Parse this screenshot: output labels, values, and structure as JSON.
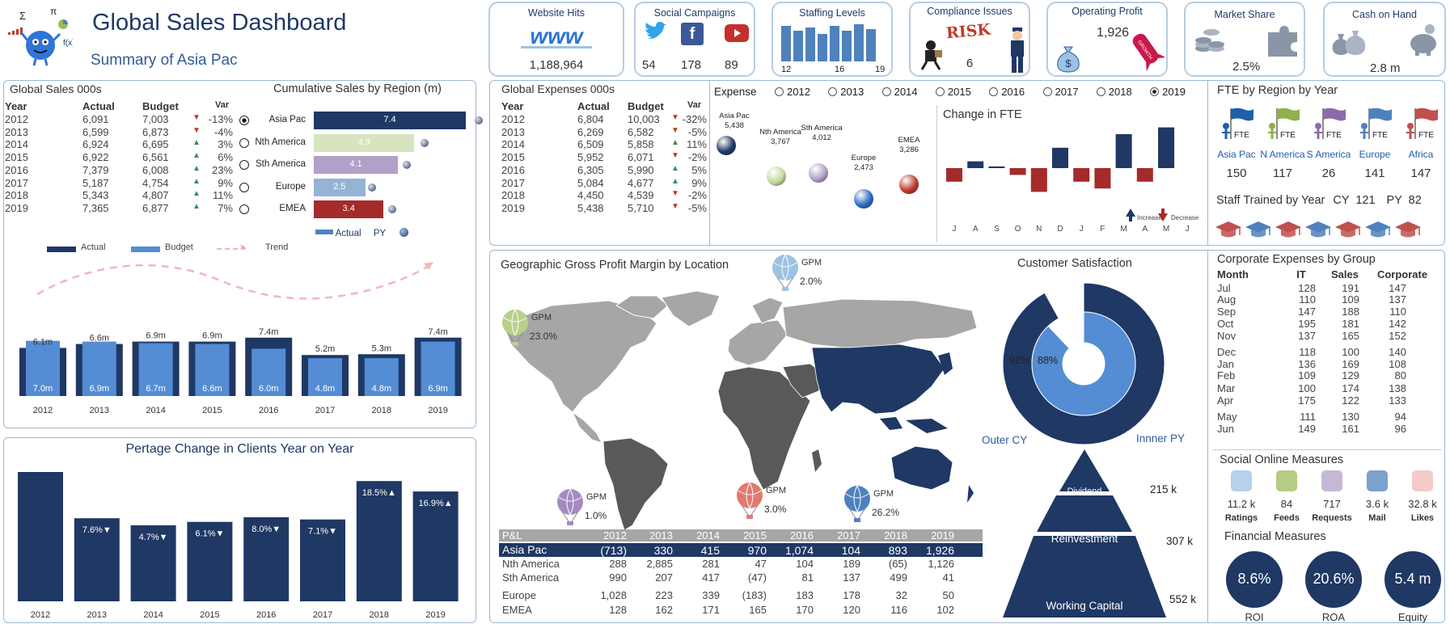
{
  "header": {
    "title": "Global Sales Dashboard",
    "subtitle": "Summary of Asia Pac"
  },
  "kpis": {
    "website": {
      "title": "Website Hits",
      "value": "1,188,964"
    },
    "social": {
      "title": "Social Campaigns",
      "twitter": "54",
      "facebook": "178",
      "youtube": "89"
    },
    "staffing": {
      "title": "Staffing Levels",
      "ticks": [
        "12",
        "16",
        "19"
      ]
    },
    "compliance": {
      "title": "Compliance Issues",
      "risk_word": "RISK",
      "value": "6"
    },
    "profit": {
      "title": "Operating Profit",
      "value": "1,926",
      "badge": "GROWTH"
    },
    "market": {
      "title": "Market Share",
      "value": "2.5%"
    },
    "cash": {
      "title": "Cash on Hand",
      "value": "2.8 m"
    }
  },
  "global_sales": {
    "title": "Global Sales 000s",
    "headers": [
      "Year",
      "Actual",
      "Budget",
      "Var"
    ],
    "rows": [
      {
        "year": "2012",
        "actual": "6,091",
        "budget": "7,003",
        "dir": "down",
        "var": "-13%"
      },
      {
        "year": "2013",
        "actual": "6,599",
        "budget": "6,873",
        "dir": "down",
        "var": "-4%"
      },
      {
        "year": "2014",
        "actual": "6,924",
        "budget": "6,695",
        "dir": "up",
        "var": "3%"
      },
      {
        "year": "2015",
        "actual": "6,922",
        "budget": "6,561",
        "dir": "up",
        "var": "6%"
      },
      {
        "year": "2016",
        "actual": "7,379",
        "budget": "6,008",
        "dir": "up",
        "var": "23%"
      },
      {
        "year": "2017",
        "actual": "5,187",
        "budget": "4,754",
        "dir": "up",
        "var": "9%"
      },
      {
        "year": "2018",
        "actual": "5,343",
        "budget": "4,807",
        "dir": "up",
        "var": "11%"
      },
      {
        "year": "2019",
        "actual": "7,365",
        "budget": "6,877",
        "dir": "up",
        "var": "7%"
      }
    ]
  },
  "cumulative": {
    "title": "Cumulative Sales by Region (m)",
    "regions": [
      {
        "name": "Asia Pac",
        "value": 7.4,
        "label": "7.4",
        "color": "#1f3864",
        "selected": true
      },
      {
        "name": "Nth America",
        "value": 4.9,
        "label": "4.9",
        "color": "#d6e4bf",
        "selected": false
      },
      {
        "name": "Sth America",
        "value": 4.1,
        "label": "4.1",
        "color": "#b1a0c7",
        "selected": false
      },
      {
        "name": "Europe",
        "value": 2.5,
        "label": "2.5",
        "color": "#95b3d7",
        "selected": false
      },
      {
        "name": "EMEA",
        "value": 3.4,
        "label": "3.4",
        "color": "#a52a2a",
        "selected": false
      }
    ],
    "legend_actual": "Actual",
    "legend_py": "PY"
  },
  "sales_chart": {
    "legend": {
      "actual": "Actual",
      "budget": "Budget",
      "trend": "Trend"
    },
    "years": [
      "2012",
      "2013",
      "2014",
      "2015",
      "2016",
      "2017",
      "2018",
      "2019"
    ],
    "actual": [
      6.1,
      6.6,
      6.9,
      6.9,
      7.4,
      5.2,
      5.3,
      7.4
    ],
    "actual_labels": [
      "6.1m",
      "6.6m",
      "6.9m",
      "6.9m",
      "7.4m",
      "5.2m",
      "5.3m",
      "7.4m"
    ],
    "budget": [
      7.0,
      6.9,
      6.7,
      6.6,
      6.0,
      4.8,
      4.8,
      6.9
    ],
    "budget_labels": [
      "7.0m",
      "6.9m",
      "6.7m",
      "6.6m",
      "6.0m",
      "4.8m",
      "4.8m",
      "6.9m"
    ]
  },
  "clients": {
    "title": "Pertage Change in Clients Year on Year",
    "years": [
      "2012",
      "2013",
      "2014",
      "2015",
      "2016",
      "2017",
      "2018",
      "2019"
    ],
    "values": [
      null,
      7.6,
      4.7,
      6.1,
      8.0,
      7.1,
      18.5,
      16.9
    ],
    "labels": [
      "",
      "7.6%▼",
      "4.7%▼",
      "6.1%▼",
      "8.0%▼",
      "7.1%▼",
      "18.5%▲",
      "16.9%▲"
    ]
  },
  "global_expenses": {
    "title": "Global Expenses 000s",
    "headers": [
      "Year",
      "Actual",
      "Budget",
      "Var"
    ],
    "rows": [
      {
        "year": "2012",
        "actual": "6,804",
        "budget": "10,003",
        "dir": "down",
        "var": "-32%"
      },
      {
        "year": "2013",
        "actual": "6,269",
        "budget": "6,582",
        "dir": "down",
        "var": "-5%"
      },
      {
        "year": "2014",
        "actual": "6,509",
        "budget": "5,858",
        "dir": "up",
        "var": "11%"
      },
      {
        "year": "2015",
        "actual": "5,952",
        "budget": "6,071",
        "dir": "down",
        "var": "-2%"
      },
      {
        "year": "2016",
        "actual": "6,305",
        "budget": "5,990",
        "dir": "up",
        "var": "5%"
      },
      {
        "year": "2017",
        "actual": "5,084",
        "budget": "4,677",
        "dir": "up",
        "var": "9%"
      },
      {
        "year": "2018",
        "actual": "4,450",
        "budget": "4,539",
        "dir": "down",
        "var": "-2%"
      },
      {
        "year": "2019",
        "actual": "5,438",
        "budget": "5,710",
        "dir": "down",
        "var": "-5%"
      }
    ]
  },
  "expense_selector": {
    "label": "Expense",
    "years": [
      "2012",
      "2013",
      "2014",
      "2015",
      "2016",
      "2017",
      "2018",
      "2019"
    ],
    "selected": "2019"
  },
  "expense_regions": [
    {
      "name": "Asia Pac",
      "value": "5,438",
      "color": "#1f3864"
    },
    {
      "name": "Nth America",
      "value": "3,767",
      "color": "#c4d79b"
    },
    {
      "name": "Sth America",
      "value": "4,012",
      "color": "#b1a0c7"
    },
    {
      "name": "Europe",
      "value": "2,473",
      "color": "#2e6bc4"
    },
    {
      "name": "EMEA",
      "value": "3,286",
      "color": "#c0392b"
    }
  ],
  "fte_change": {
    "title": "Change in FTE",
    "months": [
      "J",
      "A",
      "S",
      "O",
      "N",
      "D",
      "J",
      "F",
      "M",
      "A",
      "M",
      "J"
    ],
    "values": [
      -4,
      2,
      0.5,
      -2,
      -7,
      6,
      -4,
      -6,
      10,
      -4,
      12,
      0
    ],
    "increase": "Increase",
    "decrease": "Decrease"
  },
  "fte_region": {
    "title": "FTE by Region by Year",
    "flag_text": "FTE",
    "regions": [
      {
        "name": "Asia Pac",
        "value": "150",
        "color": "#1f5fa8"
      },
      {
        "name": "N America",
        "value": "117",
        "color": "#8fb04a"
      },
      {
        "name": "S America",
        "value": "26",
        "color": "#8e6aa8"
      },
      {
        "name": "Europe",
        "value": "141",
        "color": "#4f81bd"
      },
      {
        "name": "Africa",
        "value": "147",
        "color": "#c0504d"
      }
    ],
    "trained_label": "Staff Trained by Year",
    "cy_label": "CY",
    "cy_value": "121",
    "py_label": "PY",
    "py_value": "82"
  },
  "map": {
    "title": "Geographic Gross Profit Margin by Location",
    "balloons": [
      {
        "label": "GPM",
        "value": "23.0%",
        "color": "#b9cf8c"
      },
      {
        "label": "GPM",
        "value": "2.0%",
        "color": "#9cc2e5"
      },
      {
        "label": "GPM",
        "value": "1.0%",
        "color": "#a58ac4"
      },
      {
        "label": "GPM",
        "value": "3.0%",
        "color": "#e07a70"
      },
      {
        "label": "GPM",
        "value": "26.2%",
        "color": "#4f81bd"
      }
    ]
  },
  "pl": {
    "headers": [
      "P&L",
      "2012",
      "2013",
      "2014",
      "2015",
      "2016",
      "2017",
      "2018",
      "2019"
    ],
    "rows": [
      {
        "name": "Asia Pac",
        "values": [
          "(713)",
          "330",
          "415",
          "970",
          "1,074",
          "104",
          "893",
          "1,926"
        ]
      },
      {
        "name": "Nth America",
        "values": [
          "288",
          "2,885",
          "281",
          "47",
          "104",
          "189",
          "(65)",
          "1,126"
        ]
      },
      {
        "name": "Sth America",
        "values": [
          "990",
          "207",
          "417",
          "(47)",
          "81",
          "137",
          "499",
          "41"
        ]
      },
      {
        "name": "Europe",
        "values": [
          "1,028",
          "223",
          "339",
          "(183)",
          "183",
          "178",
          "32",
          "50"
        ]
      },
      {
        "name": "EMEA",
        "values": [
          "128",
          "162",
          "171",
          "165",
          "170",
          "120",
          "116",
          "102"
        ]
      }
    ]
  },
  "satisfaction": {
    "title": "Customer Satisfaction",
    "outer_pct": 92,
    "outer_label": "92%",
    "inner_pct": 88,
    "inner_label": "88%",
    "outer_caption": "Outer CY",
    "inner_caption": "Innner PY"
  },
  "pyramid": [
    {
      "name": "Dividend",
      "value": "215 k"
    },
    {
      "name": "Reinvestment",
      "value": "307 k"
    },
    {
      "name": "Working Capital",
      "value": "552 k"
    }
  ],
  "corporate": {
    "title": "Corporate Expenses by Group",
    "headers": [
      "Month",
      "IT",
      "Sales",
      "Corporate"
    ],
    "rows": [
      [
        "Jul",
        "128",
        "191",
        "147"
      ],
      [
        "Aug",
        "110",
        "109",
        "137"
      ],
      [
        "Sep",
        "147",
        "188",
        "110"
      ],
      [
        "Oct",
        "195",
        "181",
        "142"
      ],
      [
        "Nov",
        "137",
        "165",
        "152"
      ],
      [
        "Dec",
        "118",
        "100",
        "140"
      ],
      [
        "Jan",
        "136",
        "169",
        "108"
      ],
      [
        "Feb",
        "109",
        "129",
        "80"
      ],
      [
        "Mar",
        "100",
        "174",
        "138"
      ],
      [
        "Apr",
        "175",
        "122",
        "133"
      ],
      [
        "May",
        "111",
        "130",
        "94"
      ],
      [
        "Jun",
        "149",
        "161",
        "96"
      ]
    ]
  },
  "social": {
    "title": "Social Online Measures",
    "items": [
      {
        "value": "11.2 k",
        "label": "Ratings",
        "color": "#9cc2e5"
      },
      {
        "value": "84",
        "label": "Feeds",
        "color": "#9bbb59"
      },
      {
        "value": "717",
        "label": "Requests",
        "color": "#b1a0c7"
      },
      {
        "value": "3.6 k",
        "label": "Mail",
        "color": "#4f81bd"
      },
      {
        "value": "32.8 k",
        "label": "Likes",
        "color": "#f2b8b5"
      }
    ]
  },
  "financial": {
    "title": "Financial Measures",
    "items": [
      {
        "value": "8.6%",
        "label": "ROI"
      },
      {
        "value": "20.6%",
        "label": "ROA"
      },
      {
        "value": "5.4 m",
        "label": "Equity"
      }
    ]
  },
  "colors": {
    "navy": "#1f3864",
    "mid_blue": "#548dd4",
    "up": "#3a8a5a",
    "down": "#c03a2b"
  }
}
